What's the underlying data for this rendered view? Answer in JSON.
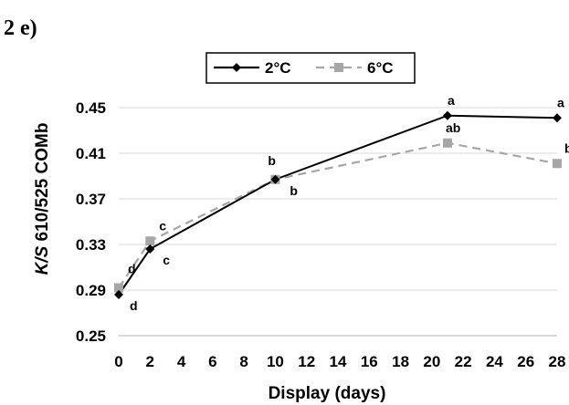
{
  "panel_label": "2 e)",
  "chart_data": {
    "type": "line",
    "xlabel": "Display (days)",
    "ylabel_italic": "K/S",
    "ylabel_rest": " 610/525 COMb",
    "x_ticks": [
      0,
      2,
      4,
      6,
      8,
      10,
      12,
      14,
      16,
      18,
      20,
      22,
      24,
      26,
      28
    ],
    "y_ticks": [
      "0.25",
      "0.29",
      "0.33",
      "0.37",
      "0.41",
      "0.45"
    ],
    "xlim": [
      0,
      28
    ],
    "ylim": [
      0.25,
      0.47
    ],
    "grid": "horizontal",
    "legend_position": "top-center",
    "series": [
      {
        "name": "2°C",
        "color": "#000000",
        "line_style": "solid",
        "marker": "diamond",
        "x": [
          0,
          2,
          10,
          21,
          28
        ],
        "y": [
          0.286,
          0.326,
          0.387,
          0.443,
          0.441
        ],
        "letters": [
          "d",
          "c",
          "b",
          "a",
          "a"
        ]
      },
      {
        "name": "6°C",
        "color": "#a6a6a6",
        "line_style": "dashed",
        "marker": "square",
        "x": [
          0,
          2,
          10,
          21,
          28
        ],
        "y": [
          0.292,
          0.333,
          0.387,
          0.419,
          0.401
        ],
        "letters": [
          "d",
          "c",
          "b",
          "ab",
          "b"
        ]
      }
    ]
  }
}
